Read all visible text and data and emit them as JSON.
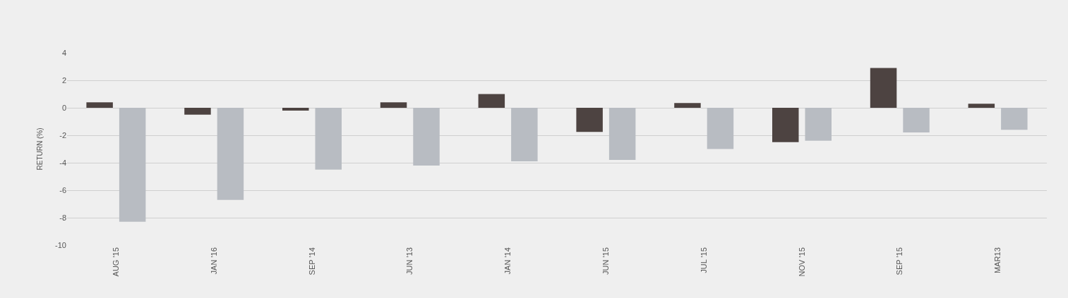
{
  "chart_data": {
    "type": "bar",
    "ylabel": "RETURN (%)",
    "categories": [
      "AUG '15",
      "JAN '16",
      "SEP '14",
      "JUN '13",
      "JAN '14",
      "JUN '15",
      "JUL '15",
      "NOV '15",
      "SEP '15",
      "MAR13"
    ],
    "series": [
      {
        "color": "#4d4341",
        "values": [
          0.4,
          -0.5,
          -0.2,
          0.4,
          1.0,
          -1.75,
          0.35,
          -2.5,
          2.9,
          0.3
        ]
      },
      {
        "color": "#b8bcc2",
        "values": [
          -8.3,
          -6.7,
          -4.5,
          -4.2,
          -3.9,
          -3.8,
          -3.0,
          -2.4,
          -1.8,
          -1.6
        ]
      }
    ],
    "ylim": [
      -10,
      4
    ],
    "yticks": [
      -10,
      -8,
      -6,
      -4,
      -2,
      0,
      2,
      4
    ],
    "grid": "y"
  }
}
